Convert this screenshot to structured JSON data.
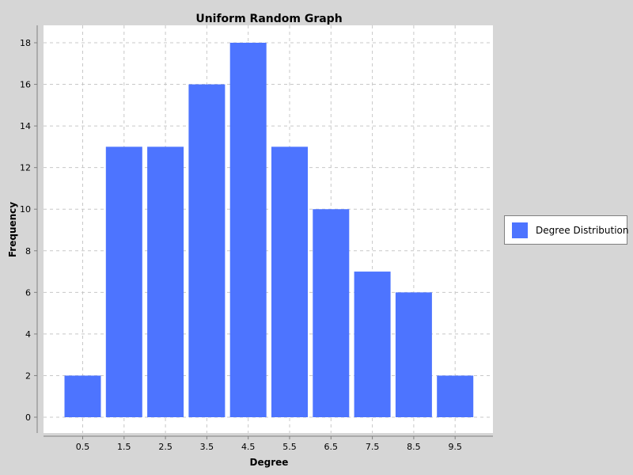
{
  "chart_data": {
    "type": "bar",
    "title": "Uniform Random Graph",
    "xlabel": "Degree",
    "ylabel": "Frequency",
    "categories": [
      "0.5",
      "1.5",
      "2.5",
      "3.5",
      "4.5",
      "5.5",
      "6.5",
      "7.5",
      "8.5",
      "9.5"
    ],
    "series": [
      {
        "name": "Degree Distribution",
        "values": [
          2,
          13,
          13,
          16,
          18,
          13,
          10,
          7,
          6,
          2
        ]
      }
    ],
    "ylim": [
      0,
      18
    ],
    "yticks": [
      0,
      2,
      4,
      6,
      8,
      10,
      12,
      14,
      16,
      18
    ],
    "grid": true,
    "legend_position": "right",
    "bar_color": "#4d74ff"
  }
}
